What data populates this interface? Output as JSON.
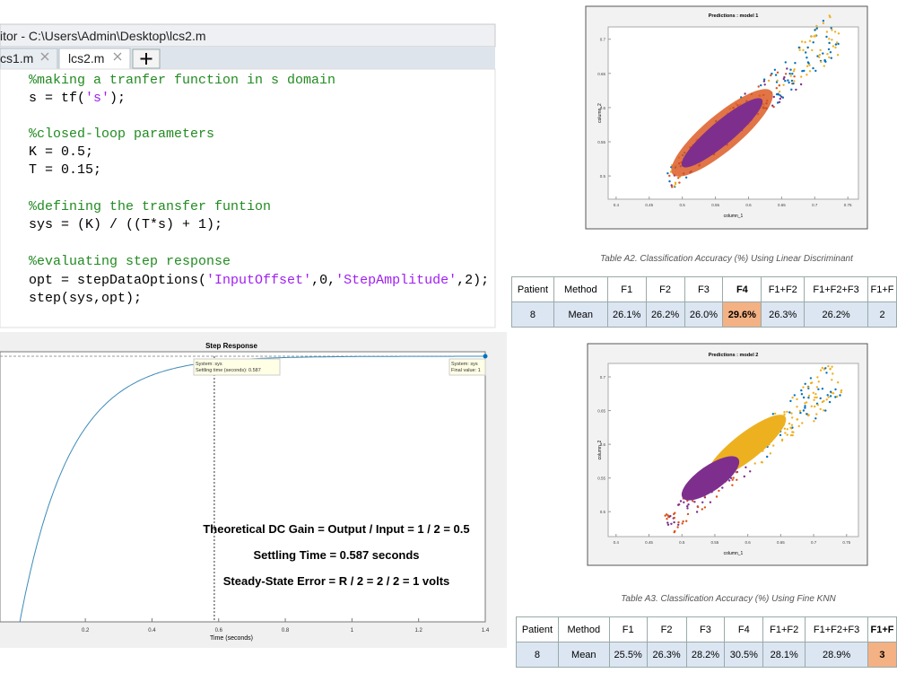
{
  "editor": {
    "title": "itor - C:\\Users\\Admin\\Desktop\\lcs2.m",
    "tabs": [
      "cs1.m",
      "lcs2.m"
    ],
    "code_lines": [
      "%making a tranfer function in s domain",
      "s = tf('s');",
      "",
      "%closed-loop parameters",
      "K = 0.5;",
      "T = 0.15;",
      "",
      "%defining the transfer funtion",
      "sys = (K) / ((T*s) + 1);",
      "",
      "%evaluating step response",
      "opt = stepDataOptions('InputOffset',0,'StepAmplitude',2);",
      "step(sys,opt);"
    ]
  },
  "step_plot": {
    "title": "Step Response",
    "xlabel": "Time (seconds)",
    "xlim": [
      -0.056,
      1.4
    ],
    "xticks": [
      0.2,
      0.4,
      0.6,
      0.8,
      1,
      1.2,
      1.4
    ],
    "settling_time": 0.587,
    "final_value": 1,
    "datatips": [
      [
        "System: sys",
        "Settling time (seconds): 0.587"
      ],
      [
        "System: sys",
        "Final value: 1"
      ]
    ],
    "annotations": [
      "Theoretical DC Gain = Output / Input = 1 / 2 = 0.5",
      "Settling Time = 0.587 seconds",
      "Steady-State Error = R / 2 = 2 / 2 = 1 volts"
    ]
  },
  "scatter_plots": [
    {
      "title": "Predictions : model 1",
      "xlabel": "column_1",
      "ylabel": "column_2",
      "xlim": [
        0.388,
        0.766
      ],
      "ylim": [
        0.466,
        0.718
      ],
      "xticks": [
        0.4,
        0.45,
        0.5,
        0.55,
        0.6,
        0.65,
        0.7,
        0.75
      ],
      "yticks": [
        0.5,
        0.55,
        0.6,
        0.65,
        0.7
      ]
    },
    {
      "title": "Predictions : model 2",
      "xlabel": "column_1",
      "ylabel": "column_2",
      "xlim": [
        0.388,
        0.768
      ],
      "ylim": [
        0.463,
        0.72
      ],
      "xticks": [
        0.4,
        0.45,
        0.5,
        0.55,
        0.6,
        0.65,
        0.7,
        0.75
      ],
      "yticks": [
        0.5,
        0.55,
        0.6,
        0.65,
        0.7
      ]
    }
  ],
  "tables": [
    {
      "caption": "Table A2. Classification Accuracy (%) Using Linear Discriminant",
      "header": [
        "Patient",
        "Method",
        "F1",
        "F2",
        "F3",
        "F4",
        "F1+F2",
        "F1+F2+F3",
        "F1+F"
      ],
      "row": [
        "8",
        "Mean",
        "26.1%",
        "26.2%",
        "26.0%",
        "29.6%",
        "26.3%",
        "26.2%",
        "2"
      ],
      "highlight": {
        "column": 5,
        "color": "#f4b183"
      }
    },
    {
      "caption": "Table A3. Classification Accuracy (%) Using Fine KNN",
      "header": [
        "Patient",
        "Method",
        "F1",
        "F2",
        "F3",
        "F4",
        "F1+F2",
        "F1+F2+F3",
        "F1+F"
      ],
      "row": [
        "8",
        "Mean",
        "25.5%",
        "26.3%",
        "28.2%",
        "30.5%",
        "28.1%",
        "28.9%",
        "3"
      ],
      "highlight": {
        "column": 8,
        "color": "#f4b183"
      }
    }
  ]
}
